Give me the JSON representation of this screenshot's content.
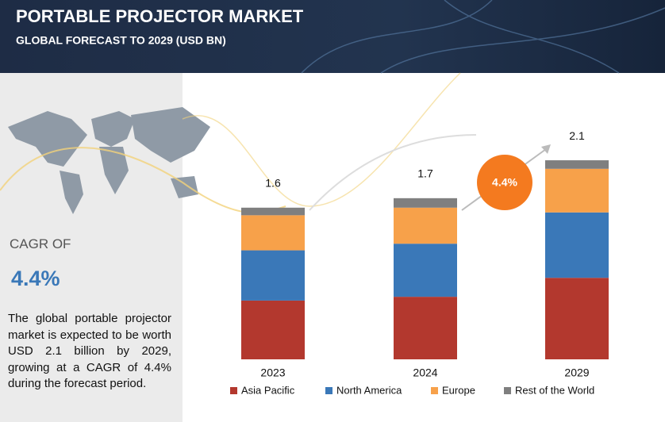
{
  "chart_data": {
    "type": "stacked_bar",
    "title": "PORTABLE PROJECTOR MARKET",
    "subtitle": "GLOBAL FORECAST TO 2029 (USD BN)",
    "cagr_label": "CAGR OF",
    "cagr_value": "4.4%",
    "bubble_label": "4.4%",
    "description": "The global portable projector market is expected to be worth USD 2.1 billion by 2029, growing at a CAGR of 4.4% during the forecast period.",
    "categories": [
      "2023",
      "2024",
      "2029"
    ],
    "totals": [
      1.6,
      1.7,
      2.1
    ],
    "series": [
      {
        "name": "Asia Pacific",
        "color": "#b3382e",
        "values": [
          0.62,
          0.66,
          0.86
        ]
      },
      {
        "name": "North America",
        "color": "#3a78b8",
        "values": [
          0.53,
          0.56,
          0.69
        ]
      },
      {
        "name": "Europe",
        "color": "#f7a14a",
        "values": [
          0.37,
          0.38,
          0.46
        ]
      },
      {
        "name": "Rest of the World",
        "color": "#7f7f7f",
        "values": [
          0.08,
          0.1,
          0.09
        ]
      }
    ]
  }
}
